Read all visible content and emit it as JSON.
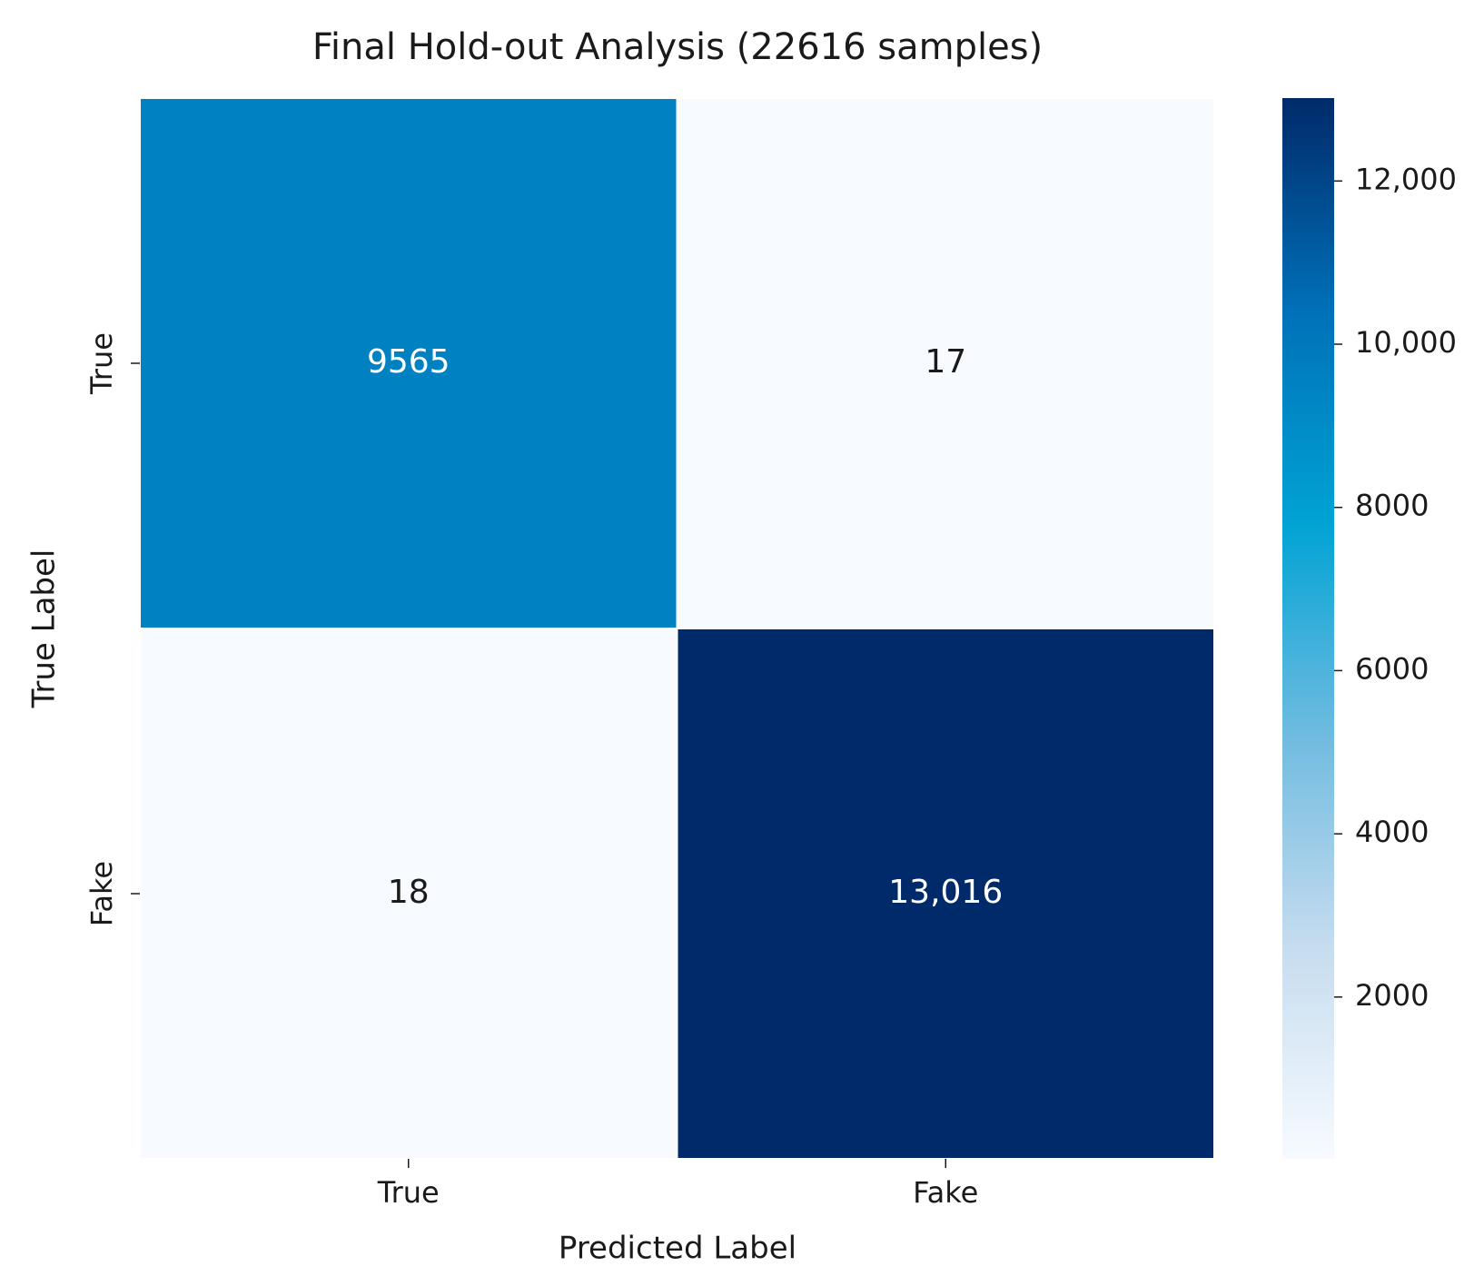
{
  "chart_data": {
    "type": "heatmap",
    "title": "Final Hold-out Analysis (22616 samples)",
    "x_label": "Predicted Label",
    "y_label": "True Label",
    "x_categories": [
      "True",
      "Fake"
    ],
    "y_categories": [
      "True",
      "Fake"
    ],
    "values": [
      [
        9565,
        17
      ],
      [
        18,
        13016
      ]
    ],
    "value_labels": [
      [
        "9565",
        "17"
      ],
      [
        "18",
        "13,016"
      ]
    ],
    "clim": [
      17,
      13016
    ],
    "colorbar_ticks": [
      2000,
      4000,
      6000,
      8000,
      {
        "value": 10000,
        "label": "10,000"
      },
      {
        "value": 12000,
        "label": "12,000"
      }
    ],
    "colormap": [
      "#f7fbff",
      "#c6dcef",
      "#6fbbe0",
      "#00a3d4",
      "#0070b8",
      "#002a6a"
    ]
  }
}
